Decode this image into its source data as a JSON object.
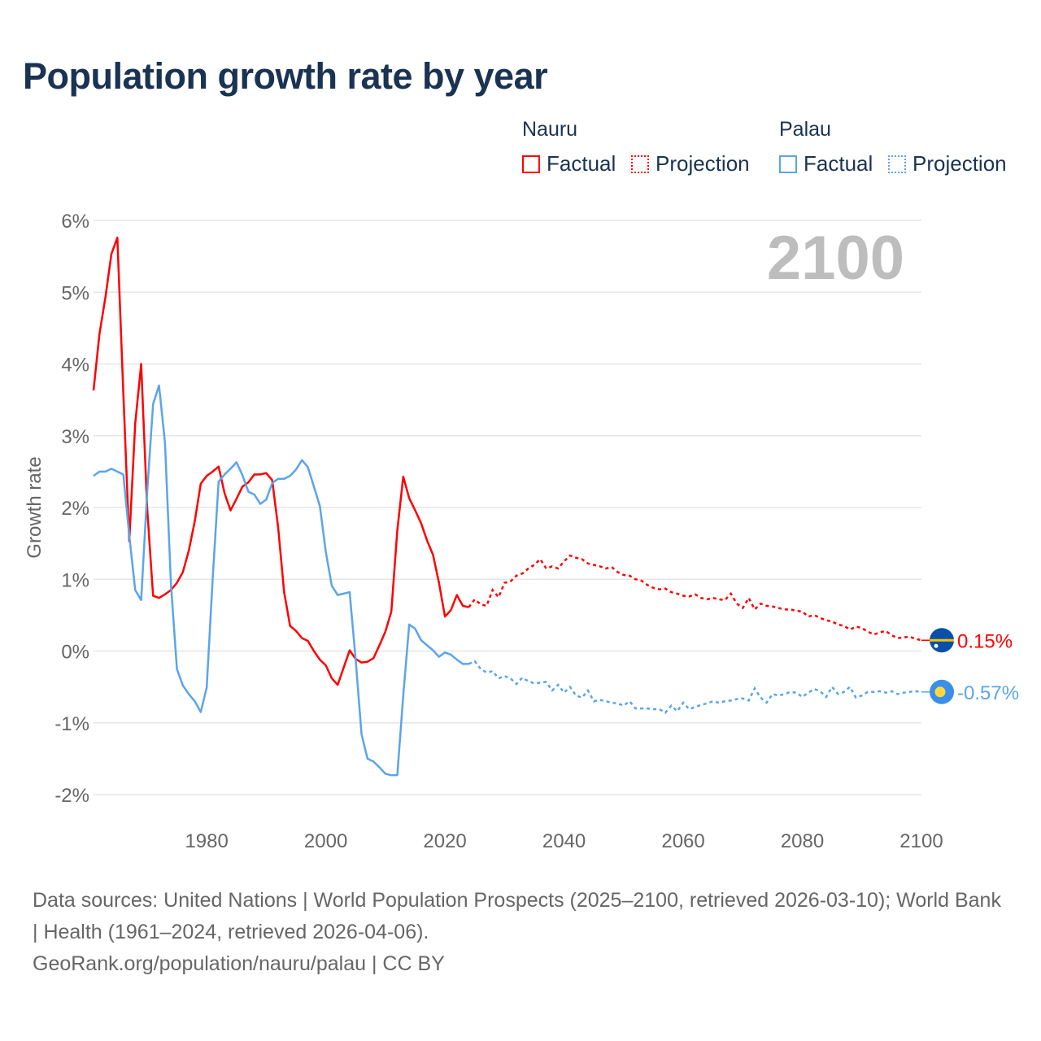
{
  "title": "Population growth rate by year",
  "legend": {
    "groups": [
      {
        "name": "Nauru",
        "factual": "Factual",
        "projection": "Projection",
        "color": "#ff0000"
      },
      {
        "name": "Palau",
        "factual": "Factual",
        "projection": "Projection",
        "color": "#5ba4ec"
      }
    ]
  },
  "footer": {
    "sources": "Data sources: United Nations | World Population Prospects (2025–2100, retrieved 2026-03-10); World Bank | Health (1961–2024, retrieved 2026-04-06).",
    "credit": "GeoRank.org/population/nauru/palau | CC BY"
  },
  "chart_data": {
    "type": "line",
    "title": "Population growth rate by year",
    "ylabel": "Growth rate",
    "xlabel": "",
    "year_label": "2100",
    "xlim": [
      1961,
      2100
    ],
    "ylim": [
      -2,
      6
    ],
    "x_ticks": [
      1980,
      2000,
      2020,
      2040,
      2060,
      2080,
      2100
    ],
    "y_ticks": [
      -2,
      -1,
      0,
      1,
      2,
      3,
      4,
      5,
      6
    ],
    "y_tick_labels": [
      "-2%",
      "-1%",
      "0%",
      "1%",
      "2%",
      "3%",
      "4%",
      "5%",
      "6%"
    ],
    "grid": true,
    "series": [
      {
        "name": "Nauru",
        "color": "#ff0000",
        "end_label": "0.15%",
        "factual_start": 1961,
        "factual": [
          3.63,
          4.42,
          4.93,
          5.53,
          5.76,
          3.6,
          1.53,
          3.17,
          4.0,
          2.0,
          0.77,
          0.74,
          0.79,
          0.85,
          0.95,
          1.1,
          1.4,
          1.81,
          2.33,
          2.44,
          2.5,
          2.57,
          2.2,
          1.96,
          2.12,
          2.29,
          2.35,
          2.46,
          2.46,
          2.48,
          2.38,
          1.72,
          0.82,
          0.35,
          0.28,
          0.18,
          0.14,
          0.0,
          -0.12,
          -0.2,
          -0.38,
          -0.47,
          -0.23,
          0.01,
          -0.11,
          -0.16,
          -0.15,
          -0.1,
          0.08,
          0.27,
          0.55,
          1.68,
          2.43,
          2.13,
          1.96,
          1.78,
          1.54,
          1.34,
          0.95,
          0.48,
          0.57,
          0.78,
          0.63,
          0.61
        ],
        "projection_start": 2025,
        "projection": [
          0.72,
          0.65,
          0.63,
          0.85,
          0.75,
          0.95,
          0.97,
          1.05,
          1.08,
          1.15,
          1.2,
          1.28,
          1.15,
          1.18,
          1.15,
          1.25,
          1.33,
          1.3,
          1.28,
          1.22,
          1.2,
          1.18,
          1.15,
          1.17,
          1.1,
          1.06,
          1.05,
          1.0,
          0.98,
          0.92,
          0.88,
          0.86,
          0.87,
          0.82,
          0.8,
          0.77,
          0.76,
          0.79,
          0.74,
          0.72,
          0.74,
          0.72,
          0.71,
          0.8,
          0.66,
          0.6,
          0.74,
          0.58,
          0.66,
          0.63,
          0.62,
          0.6,
          0.58,
          0.58,
          0.56,
          0.55,
          0.48,
          0.5,
          0.46,
          0.43,
          0.41,
          0.37,
          0.35,
          0.3,
          0.34,
          0.32,
          0.27,
          0.23,
          0.26,
          0.28,
          0.22,
          0.18,
          0.19,
          0.2,
          0.17,
          0.15
        ]
      },
      {
        "name": "Palau",
        "color": "#5ba4ec",
        "end_label": "-0.57%",
        "factual_start": 1961,
        "factual": [
          2.44,
          2.5,
          2.5,
          2.54,
          2.5,
          2.46,
          1.61,
          0.85,
          0.71,
          2.21,
          3.44,
          3.7,
          2.9,
          0.93,
          -0.25,
          -0.48,
          -0.6,
          -0.7,
          -0.85,
          -0.51,
          1.0,
          2.36,
          2.46,
          2.54,
          2.63,
          2.45,
          2.22,
          2.18,
          2.05,
          2.11,
          2.34,
          2.4,
          2.4,
          2.44,
          2.53,
          2.66,
          2.56,
          2.29,
          2.02,
          1.38,
          0.91,
          0.78,
          0.8,
          0.82,
          -0.11,
          -1.16,
          -1.5,
          -1.54,
          -1.62,
          -1.71,
          -1.73,
          -1.73,
          -0.62,
          0.37,
          0.31,
          0.15,
          0.08,
          0.01,
          -0.08,
          -0.02,
          -0.05,
          -0.12,
          -0.18,
          -0.18
        ],
        "projection_start": 2025,
        "projection": [
          -0.14,
          -0.25,
          -0.3,
          -0.28,
          -0.38,
          -0.35,
          -0.38,
          -0.46,
          -0.37,
          -0.42,
          -0.45,
          -0.44,
          -0.43,
          -0.55,
          -0.47,
          -0.58,
          -0.5,
          -0.62,
          -0.65,
          -0.55,
          -0.7,
          -0.68,
          -0.7,
          -0.72,
          -0.73,
          -0.76,
          -0.7,
          -0.8,
          -0.8,
          -0.8,
          -0.81,
          -0.81,
          -0.86,
          -0.76,
          -0.84,
          -0.72,
          -0.81,
          -0.78,
          -0.75,
          -0.73,
          -0.7,
          -0.72,
          -0.7,
          -0.69,
          -0.67,
          -0.66,
          -0.69,
          -0.52,
          -0.65,
          -0.72,
          -0.6,
          -0.62,
          -0.6,
          -0.57,
          -0.58,
          -0.64,
          -0.58,
          -0.53,
          -0.56,
          -0.64,
          -0.5,
          -0.6,
          -0.57,
          -0.5,
          -0.65,
          -0.62,
          -0.57,
          -0.57,
          -0.56,
          -0.58,
          -0.56,
          -0.6,
          -0.58,
          -0.57,
          -0.56,
          -0.57
        ]
      }
    ]
  }
}
